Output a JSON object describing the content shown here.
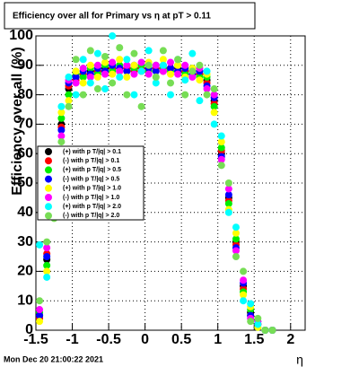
{
  "chart_data": {
    "type": "scatter",
    "title": "Efficiency over all for Primary vs  η at pT > 0.11",
    "x_label": "η",
    "y_label": "Efficiency over all (%)",
    "footer": "Mon Dec 20 21:00:22 2021",
    "grid": true,
    "legend": "left",
    "xlim": [
      -1.5,
      2.2
    ],
    "ylim": [
      0,
      100
    ],
    "xticks": [
      -1.5,
      -1,
      -0.5,
      0,
      0.5,
      1,
      1.5,
      2
    ],
    "yticks": [
      0,
      10,
      20,
      30,
      40,
      50,
      60,
      70,
      80,
      90,
      100
    ],
    "x": [
      -1.45,
      -1.35,
      -1.25,
      -1.15,
      -1.05,
      -0.95,
      -0.85,
      -0.75,
      -0.65,
      -0.55,
      -0.45,
      -0.35,
      -0.25,
      -0.15,
      -0.05,
      0.05,
      0.15,
      0.25,
      0.35,
      0.45,
      0.55,
      0.65,
      0.75,
      0.85,
      0.95,
      1.05,
      1.15,
      1.25,
      1.35,
      1.45,
      1.55,
      1.65,
      1.75
    ],
    "series": [
      {
        "name": "(+) with p T/|q| > 0.1",
        "color": "#000000",
        "values": [
          5,
          24,
          46,
          70,
          82,
          86,
          87,
          88,
          88,
          89,
          89,
          89,
          89,
          89,
          89,
          89,
          89,
          89,
          89,
          89,
          88,
          88,
          87,
          85,
          78,
          60,
          45,
          30,
          15,
          6,
          2,
          0,
          0
        ]
      },
      {
        "name": "(-) with p T/|q| > 0.1",
        "color": "#ff0000",
        "values": [
          4,
          26,
          44,
          69,
          83,
          85,
          87,
          87,
          88,
          88,
          89,
          88,
          89,
          88,
          89,
          88,
          89,
          88,
          89,
          88,
          88,
          87,
          87,
          84,
          77,
          61,
          44,
          29,
          14,
          5,
          2,
          0,
          0
        ]
      },
      {
        "name": "(+) with p T/|q| > 0.5",
        "color": "#00ee00",
        "values": [
          6,
          22,
          48,
          72,
          80,
          87,
          86,
          89,
          87,
          90,
          88,
          90,
          88,
          89,
          90,
          88,
          90,
          89,
          88,
          90,
          87,
          89,
          86,
          86,
          76,
          62,
          43,
          31,
          13,
          7,
          1,
          0,
          0
        ]
      },
      {
        "name": "(-) with p T/|q| > 0.5",
        "color": "#0000ff",
        "values": [
          5,
          25,
          43,
          68,
          84,
          86,
          88,
          87,
          89,
          88,
          90,
          89,
          88,
          90,
          88,
          89,
          88,
          90,
          89,
          88,
          89,
          87,
          88,
          83,
          79,
          59,
          46,
          28,
          16,
          5,
          3,
          0,
          0
        ]
      },
      {
        "name": "(+) with p T/|q| > 1.0",
        "color": "#ffff00",
        "values": [
          3,
          20,
          50,
          74,
          78,
          88,
          84,
          90,
          86,
          91,
          87,
          92,
          86,
          90,
          88,
          91,
          86,
          92,
          87,
          90,
          86,
          89,
          85,
          87,
          74,
          64,
          41,
          33,
          12,
          8,
          1,
          0,
          0
        ]
      },
      {
        "name": "(-) with p T/|q| > 1.0",
        "color": "#ff00ff",
        "values": [
          7,
          28,
          41,
          66,
          85,
          84,
          89,
          86,
          90,
          87,
          91,
          88,
          90,
          87,
          91,
          87,
          90,
          88,
          91,
          87,
          90,
          86,
          89,
          82,
          80,
          58,
          48,
          27,
          17,
          4,
          3,
          0,
          0
        ]
      },
      {
        "name": "(+) with p T/|q| > 2.0",
        "color": "#00ffff",
        "values": [
          29,
          18,
          55,
          76,
          86,
          80,
          92,
          84,
          94,
          82,
          100,
          86,
          92,
          80,
          88,
          95,
          84,
          90,
          80,
          92,
          85,
          94,
          78,
          88,
          70,
          66,
          40,
          35,
          10,
          9,
          2,
          0,
          0
        ]
      },
      {
        "name": "(-) with p T/|q| > 2.0",
        "color": "#77dd55",
        "values": [
          10,
          30,
          38,
          64,
          76,
          92,
          80,
          95,
          82,
          93,
          84,
          96,
          80,
          94,
          76,
          90,
          86,
          95,
          84,
          92,
          80,
          88,
          90,
          80,
          82,
          56,
          50,
          25,
          20,
          3,
          4,
          0,
          0
        ]
      }
    ]
  }
}
